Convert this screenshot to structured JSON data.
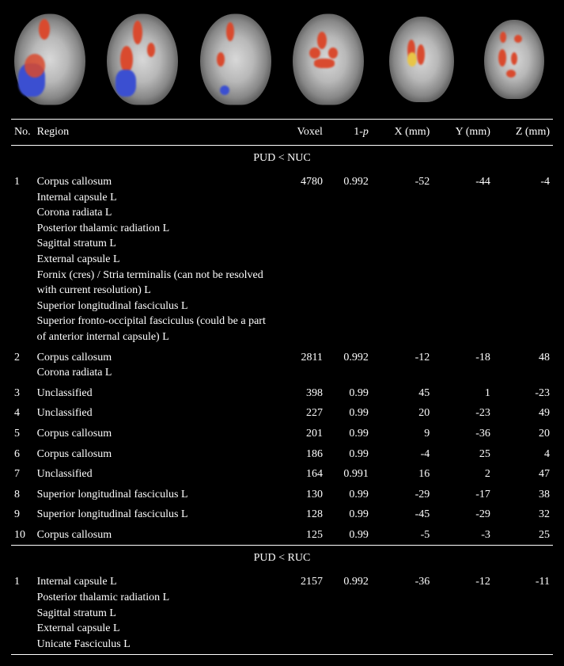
{
  "figure": {
    "background_color": "#000000",
    "text_color": "#ffffff",
    "font_family": "Times New Roman",
    "slice_count": 6,
    "brain_gray_gradient": [
      "#d8d8d8",
      "#b8b8b8",
      "#888888",
      "#3a3a3a",
      "#000000"
    ],
    "overlay_colors": {
      "red": "#d94a2e",
      "blue": "#3b4fd1",
      "yellow": "#e8c548"
    }
  },
  "table": {
    "headers": {
      "no": "No.",
      "region": "Region",
      "voxel": "Voxel",
      "pval": "1-p",
      "x": "X (mm)",
      "y": "Y (mm)",
      "z": "Z (mm)"
    },
    "section1_title": "PUD < NUC",
    "section2_title": "PUD < RUC",
    "section1_rows": [
      {
        "no": "1",
        "region": "Corpus callosum",
        "sub": [
          "Internal capsule L",
          "Corona radiata L",
          "Posterior thalamic radiation L",
          "Sagittal stratum L",
          "External capsule L",
          "Fornix (cres) / Stria terminalis (can not be resolved with current resolution) L",
          "Superior longitudinal fasciculus L",
          "Superior fronto-occipital fasciculus (could be a part of anterior internal capsule) L"
        ],
        "voxel": "4780",
        "pval": "0.992",
        "x": "-52",
        "y": "-44",
        "z": "-4"
      },
      {
        "no": "2",
        "region": "Corpus callosum",
        "sub": [
          "Corona radiata L"
        ],
        "voxel": "2811",
        "pval": "0.992",
        "x": "-12",
        "y": "-18",
        "z": "48"
      },
      {
        "no": "3",
        "region": "Unclassified",
        "sub": [],
        "voxel": "398",
        "pval": "0.99",
        "x": "45",
        "y": "1",
        "z": "-23"
      },
      {
        "no": "4",
        "region": "Unclassified",
        "sub": [],
        "voxel": "227",
        "pval": "0.99",
        "x": "20",
        "y": "-23",
        "z": "49"
      },
      {
        "no": "5",
        "region": "Corpus callosum",
        "sub": [],
        "voxel": "201",
        "pval": "0.99",
        "x": "9",
        "y": "-36",
        "z": "20"
      },
      {
        "no": "6",
        "region": "Corpus callosum",
        "sub": [],
        "voxel": "186",
        "pval": "0.99",
        "x": "-4",
        "y": "25",
        "z": "4"
      },
      {
        "no": "7",
        "region": "Unclassified",
        "sub": [],
        "voxel": "164",
        "pval": "0.991",
        "x": "16",
        "y": "2",
        "z": "47"
      },
      {
        "no": "8",
        "region": "Superior longitudinal fasciculus L",
        "sub": [],
        "voxel": "130",
        "pval": "0.99",
        "x": "-29",
        "y": "-17",
        "z": "38"
      },
      {
        "no": "9",
        "region": "Superior longitudinal fasciculus L",
        "sub": [],
        "voxel": "128",
        "pval": "0.99",
        "x": "-45",
        "y": "-29",
        "z": "32"
      },
      {
        "no": "10",
        "region": "Corpus callosum",
        "sub": [],
        "voxel": "125",
        "pval": "0.99",
        "x": "-5",
        "y": "-3",
        "z": "25"
      }
    ],
    "section2_rows": [
      {
        "no": "1",
        "region": "Internal capsule L",
        "sub": [
          "Posterior thalamic radiation L",
          "Sagittal stratum L",
          "External capsule L",
          "Unicate Fasciculus L"
        ],
        "voxel": "2157",
        "pval": "0.992",
        "x": "-36",
        "y": "-12",
        "z": "-11"
      }
    ]
  }
}
